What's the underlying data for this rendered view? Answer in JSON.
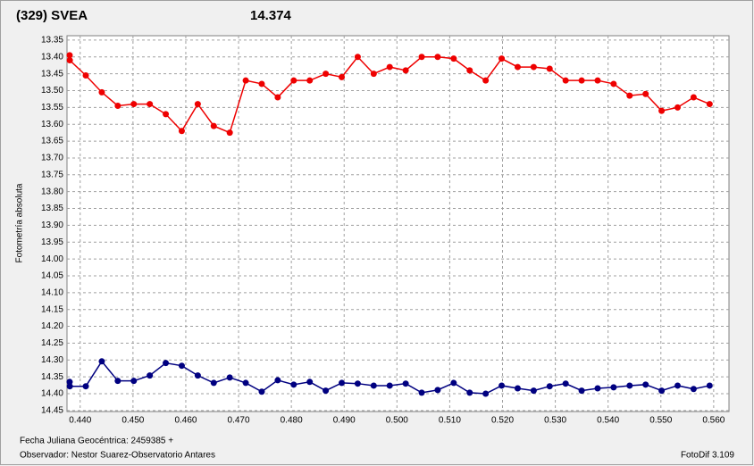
{
  "chart_data": {
    "type": "line",
    "title": "(329) SVEA",
    "title_color": "#ee0000",
    "subtitle": "14.374",
    "subtitle_color": "#000080",
    "ylabel": "Fotometría absoluta",
    "xlabel": "Fecha Juliana Geocéntrica: 2459385 +",
    "observer": "Observador: Nestor Suarez-Observatorio Antares",
    "software": "FotoDif 3.109",
    "grid": true,
    "y_inverted": true,
    "xlim": [
      0.4375,
      0.5629
    ],
    "ylim": [
      13.337,
      14.453
    ],
    "xticks": [
      {
        "value": 0.44,
        "label": "0.440"
      },
      {
        "value": 0.45,
        "label": "0.450"
      },
      {
        "value": 0.46,
        "label": "0.460"
      },
      {
        "value": 0.47,
        "label": "0.470"
      },
      {
        "value": 0.48,
        "label": "0.480"
      },
      {
        "value": 0.49,
        "label": "0.490"
      },
      {
        "value": 0.5,
        "label": "0.500"
      },
      {
        "value": 0.51,
        "label": "0.510"
      },
      {
        "value": 0.52,
        "label": "0.520"
      },
      {
        "value": 0.53,
        "label": "0.530"
      },
      {
        "value": 0.54,
        "label": "0.540"
      },
      {
        "value": 0.55,
        "label": "0.550"
      },
      {
        "value": 0.56,
        "label": "0.560"
      }
    ],
    "yticks": [
      {
        "value": 13.35,
        "label": "13.35"
      },
      {
        "value": 13.4,
        "label": "13.40"
      },
      {
        "value": 13.45,
        "label": "13.45"
      },
      {
        "value": 13.5,
        "label": "13.50"
      },
      {
        "value": 13.55,
        "label": "13.55"
      },
      {
        "value": 13.6,
        "label": "13.60"
      },
      {
        "value": 13.65,
        "label": "13.65"
      },
      {
        "value": 13.7,
        "label": "13.70"
      },
      {
        "value": 13.75,
        "label": "13.75"
      },
      {
        "value": 13.8,
        "label": "13.80"
      },
      {
        "value": 13.85,
        "label": "13.85"
      },
      {
        "value": 13.9,
        "label": "13.90"
      },
      {
        "value": 13.95,
        "label": "13.95"
      },
      {
        "value": 14.0,
        "label": "14.00"
      },
      {
        "value": 14.05,
        "label": "14.05"
      },
      {
        "value": 14.1,
        "label": "14.10"
      },
      {
        "value": 14.15,
        "label": "14.15"
      },
      {
        "value": 14.2,
        "label": "14.20"
      },
      {
        "value": 14.25,
        "label": "14.25"
      },
      {
        "value": 14.3,
        "label": "14.30"
      },
      {
        "value": 14.35,
        "label": "14.35"
      },
      {
        "value": 14.4,
        "label": "14.40"
      },
      {
        "value": 14.45,
        "label": "14.45"
      }
    ],
    "x": [
      0.438,
      0.43803,
      0.44106,
      0.44409,
      0.44712,
      0.45015,
      0.45318,
      0.45621,
      0.45924,
      0.46227,
      0.4653,
      0.46833,
      0.47136,
      0.47439,
      0.47742,
      0.48045,
      0.48348,
      0.48651,
      0.48954,
      0.49257,
      0.4956,
      0.49863,
      0.50166,
      0.50469,
      0.50772,
      0.51075,
      0.51378,
      0.51681,
      0.51984,
      0.52287,
      0.5259,
      0.52893,
      0.53196,
      0.53499,
      0.53802,
      0.54105,
      0.54408,
      0.54711,
      0.55014,
      0.55317,
      0.5562,
      0.55923
    ],
    "series": [
      {
        "color": "#ee0000",
        "values": [
          13.395,
          13.41,
          13.455,
          13.505,
          13.545,
          13.54,
          13.54,
          13.57,
          13.62,
          13.54,
          13.605,
          13.625,
          13.47,
          13.48,
          13.52,
          13.47,
          13.47,
          13.45,
          13.46,
          13.4,
          13.45,
          13.43,
          13.44,
          13.4,
          13.4,
          13.405,
          13.44,
          13.47,
          13.405,
          13.43,
          13.43,
          13.435,
          13.47,
          13.47,
          13.47,
          13.48,
          13.515,
          13.51,
          13.56,
          13.55,
          13.52,
          13.54
        ]
      },
      {
        "color": "#000080",
        "values": [
          14.365,
          14.378,
          14.378,
          14.304,
          14.362,
          14.362,
          14.346,
          14.309,
          14.317,
          14.346,
          14.368,
          14.352,
          14.368,
          14.394,
          14.36,
          14.373,
          14.365,
          14.391,
          14.368,
          14.37,
          14.376,
          14.376,
          14.37,
          14.397,
          14.389,
          14.368,
          14.397,
          14.4,
          14.376,
          14.384,
          14.391,
          14.378,
          14.37,
          14.391,
          14.384,
          14.381,
          14.376,
          14.373,
          14.391,
          14.376,
          14.386,
          14.376
        ]
      }
    ]
  }
}
